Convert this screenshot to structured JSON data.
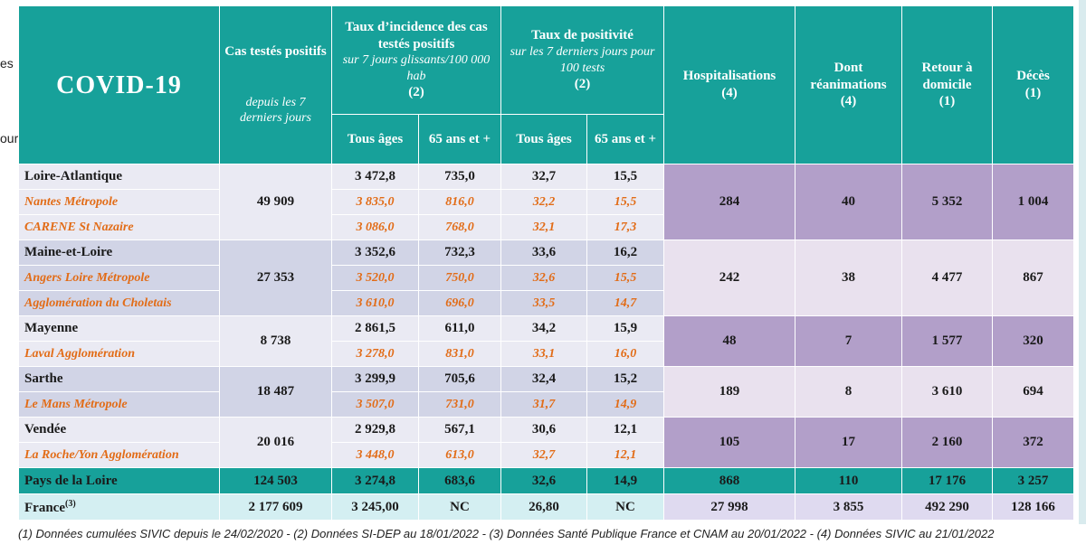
{
  "edge_fragments": [
    "es",
    "our"
  ],
  "header": {
    "title": "COVID-19",
    "cas": {
      "label": "Cas testés positifs",
      "sub": "depuis les 7 derniers jours"
    },
    "incidence": {
      "label": "Taux d’incidence des cas testés positifs",
      "sub": "sur 7 jours glissants/100 000 hab",
      "note": "(2)"
    },
    "positivite": {
      "label": "Taux de positivité",
      "sub": "sur les 7 derniers jours pour 100 tests",
      "note": "(2)"
    },
    "hosp": {
      "label": "Hospitalisations",
      "note": "(4)"
    },
    "rea": {
      "label": "Dont réanimations",
      "note": "(4)"
    },
    "retour": {
      "label": "Retour à domicile",
      "note": "(1)"
    },
    "deces": {
      "label": "Décès",
      "note": "(1)"
    },
    "tous_ages": "Tous âges",
    "plus65": "65 ans et +"
  },
  "departments": [
    {
      "name": "Loire-Atlantique",
      "cas": "49 909",
      "inc_all": "3 472,8",
      "inc_65": "735,0",
      "pos_all": "32,7",
      "pos_65": "15,5",
      "hosp": "284",
      "rea": "40",
      "retour": "5 352",
      "deces": "1 004",
      "subs": [
        {
          "name": "Nantes Métropole",
          "inc_all": "3 835,0",
          "inc_65": "816,0",
          "pos_all": "32,2",
          "pos_65": "15,5"
        },
        {
          "name": "CARENE St Nazaire",
          "inc_all": "3 086,0",
          "inc_65": "768,0",
          "pos_all": "32,1",
          "pos_65": "17,3"
        }
      ]
    },
    {
      "name": "Maine-et-Loire",
      "cas": "27 353",
      "inc_all": "3 352,6",
      "inc_65": "732,3",
      "pos_all": "33,6",
      "pos_65": "16,2",
      "hosp": "242",
      "rea": "38",
      "retour": "4 477",
      "deces": "867",
      "subs": [
        {
          "name": "Angers Loire Métropole",
          "inc_all": "3 520,0",
          "inc_65": "750,0",
          "pos_all": "32,6",
          "pos_65": "15,5"
        },
        {
          "name": "Agglomération du Choletais",
          "inc_all": "3 610,0",
          "inc_65": "696,0",
          "pos_all": "33,5",
          "pos_65": "14,7"
        }
      ]
    },
    {
      "name": "Mayenne",
      "cas": "8 738",
      "inc_all": "2 861,5",
      "inc_65": "611,0",
      "pos_all": "34,2",
      "pos_65": "15,9",
      "hosp": "48",
      "rea": "7",
      "retour": "1 577",
      "deces": "320",
      "subs": [
        {
          "name": "Laval Agglomération",
          "inc_all": "3 278,0",
          "inc_65": "831,0",
          "pos_all": "33,1",
          "pos_65": "16,0"
        }
      ]
    },
    {
      "name": "Sarthe",
      "cas": "18 487",
      "inc_all": "3 299,9",
      "inc_65": "705,6",
      "pos_all": "32,4",
      "pos_65": "15,2",
      "hosp": "189",
      "rea": "8",
      "retour": "3 610",
      "deces": "694",
      "subs": [
        {
          "name": "Le Mans Métropole",
          "inc_all": "3 507,0",
          "inc_65": "731,0",
          "pos_all": "31,7",
          "pos_65": "14,9"
        }
      ]
    },
    {
      "name": "Vendée",
      "cas": "20 016",
      "inc_all": "2 929,8",
      "inc_65": "567,1",
      "pos_all": "30,6",
      "pos_65": "12,1",
      "hosp": "105",
      "rea": "17",
      "retour": "2 160",
      "deces": "372",
      "subs": [
        {
          "name": "La Roche/Yon  Agglomération",
          "inc_all": "3 448,0",
          "inc_65": "613,0",
          "pos_all": "32,7",
          "pos_65": "12,1"
        }
      ]
    }
  ],
  "region": {
    "name": "Pays de la Loire",
    "cas": "124 503",
    "inc_all": "3 274,8",
    "inc_65": "683,6",
    "pos_all": "32,6",
    "pos_65": "14,9",
    "hosp": "868",
    "rea": "110",
    "retour": "17 176",
    "deces": "3 257"
  },
  "france": {
    "name": "France",
    "note": "(3)",
    "cas": "2 177 609",
    "inc_all": "3 245,00",
    "inc_65": "NC",
    "pos_all": "26,80",
    "pos_65": "NC",
    "hosp": "27 998",
    "rea": "3 855",
    "retour": "492 290",
    "deces": "128 166"
  },
  "footnote": "(1) Données cumulées SIVIC depuis le 24/02/2020 - (2) Données SI-DEP  au 18/01/2022 - (3) Données Santé Publique France et CNAM au 20/01/2022 - (4) Données SIVIC au 21/01/2022"
}
